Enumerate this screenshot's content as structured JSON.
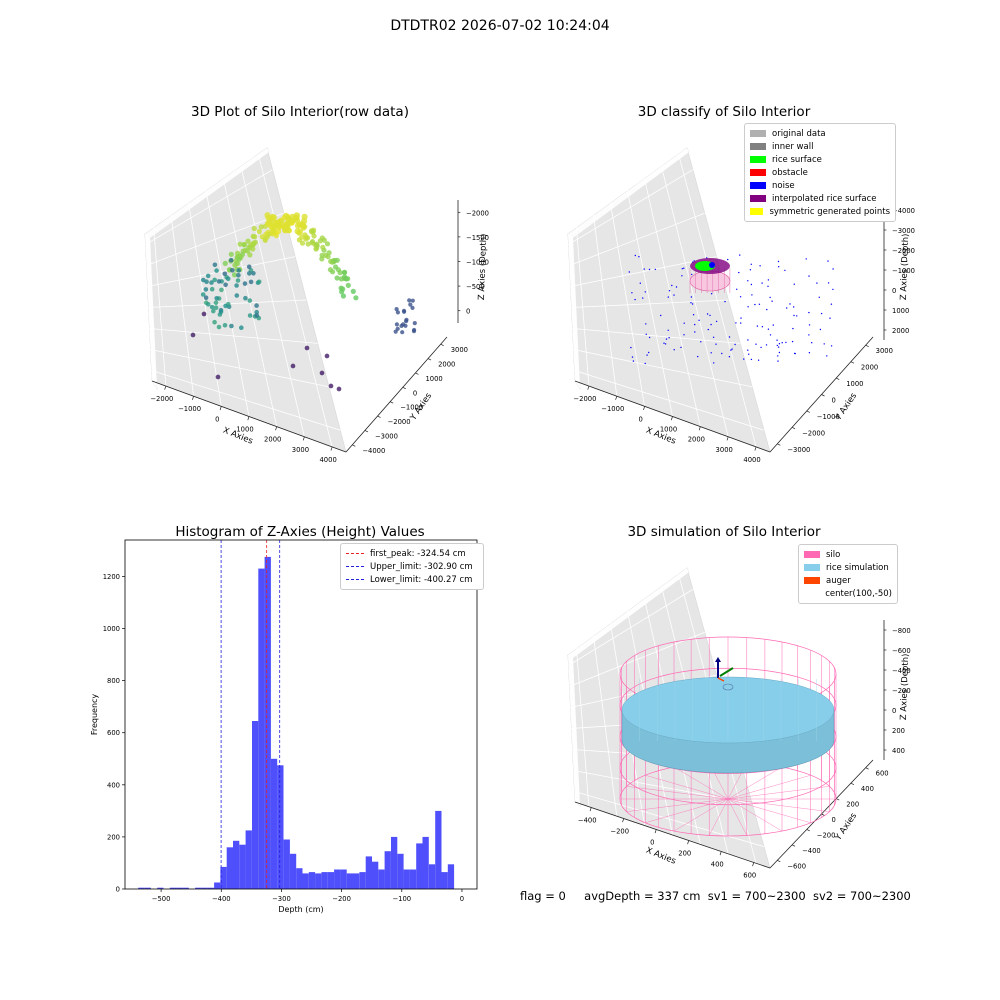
{
  "suptitle": "DTDTR02 2026-07-02 10:24:04",
  "status": {
    "flag": "flag = 0",
    "avg_depth": "avgDepth = 337 cm",
    "sv1": "sv1 = 700~2300",
    "sv2": "sv2 = 700~2300"
  },
  "colors": {
    "hist_bar": "#4f4ffb",
    "first_peak": "#e82020",
    "limit": "#2222dd",
    "silo": "#ff69b4",
    "rice": "#87ceeb",
    "auger": "#ff4500"
  },
  "chart_data": [
    {
      "type": "scatter",
      "title": "3D Plot of Silo Interior(row data)",
      "xlabel": "X Axies",
      "ylabel": "Y Axies",
      "zlabel": "Z Axies (Depth)",
      "x_ticks": [
        "−2000",
        "−1000",
        "0",
        "1000",
        "2000",
        "3000",
        "4000"
      ],
      "y_ticks": [
        "−4000",
        "−3000",
        "−2000",
        "−1000",
        "0",
        "1000",
        "2000",
        "3000"
      ],
      "z_ticks": [
        "0",
        "−500",
        "−1000",
        "−1500",
        "−2000"
      ],
      "colormap": "viridis"
    },
    {
      "type": "scatter",
      "title": "3D classify of Silo Interior",
      "xlabel": "X Axies",
      "ylabel": "Y Axies",
      "zlabel": "Z Axies (Depth)",
      "x_ticks": [
        "−2000",
        "−1000",
        "0",
        "1000",
        "2000",
        "3000",
        "4000"
      ],
      "y_ticks": [
        "−3000",
        "−2000",
        "−1000",
        "0",
        "1000",
        "2000",
        "3000"
      ],
      "z_ticks": [
        "2000",
        "1000",
        "0",
        "−1000",
        "−2000",
        "−3000",
        "−4000"
      ],
      "legend": [
        {
          "label": "original data",
          "color": "#b0b0b0"
        },
        {
          "label": "inner wall",
          "color": "#808080"
        },
        {
          "label": "rice surface",
          "color": "#00ff00"
        },
        {
          "label": "obstacle",
          "color": "#ff0000"
        },
        {
          "label": "noise",
          "color": "#0000ff"
        },
        {
          "label": "interpolated rice surface",
          "color": "#800080"
        },
        {
          "label": "symmetric generated points",
          "color": "#ffff00"
        }
      ]
    },
    {
      "type": "bar",
      "title": "Histogram of Z-Axies (Height) Values",
      "xlabel": "Depth (cm)",
      "ylabel": "Frequency",
      "xlim": [
        -560,
        25
      ],
      "ylim": [
        0,
        1340
      ],
      "x_ticks": [
        -500,
        -400,
        -300,
        -200,
        -100,
        0
      ],
      "x_tick_labels": [
        "−500",
        "−400",
        "−300",
        "−200",
        "−100",
        "0"
      ],
      "y_ticks": [
        0,
        200,
        400,
        600,
        800,
        1000,
        1200
      ],
      "bin_width": 10.5,
      "bin_starts": [
        -538,
        -527.5,
        -517,
        -506.5,
        -496,
        -485.5,
        -475,
        -464.5,
        -454,
        -443.5,
        -433,
        -422.5,
        -412,
        -401.5,
        -391,
        -380.5,
        -370,
        -359.5,
        -349,
        -338.5,
        -328,
        -317.5,
        -307,
        -296.5,
        -286,
        -275.5,
        -265,
        -254.5,
        -244,
        -233.5,
        -223,
        -212.5,
        -202,
        -191.5,
        -181,
        -170.5,
        -160,
        -149.5,
        -139,
        -128.5,
        -118,
        -107.5,
        -97,
        -86.5,
        -76,
        -65.5,
        -55,
        -44.5,
        -34,
        -23.5,
        -13,
        -2.5
      ],
      "values": [
        5,
        5,
        0,
        5,
        0,
        5,
        5,
        5,
        0,
        5,
        5,
        5,
        25,
        85,
        160,
        185,
        170,
        225,
        645,
        1230,
        1275,
        500,
        475,
        190,
        135,
        80,
        60,
        65,
        60,
        65,
        65,
        75,
        75,
        60,
        60,
        65,
        125,
        105,
        75,
        145,
        200,
        135,
        75,
        75,
        175,
        200,
        95,
        300,
        65,
        95,
        0,
        0
      ],
      "lines": [
        {
          "label": "first_peak: -324.54 cm",
          "x": -324.54,
          "color": "#e82020"
        },
        {
          "label": "Upper_limit: -302.90 cm",
          "x": -302.9,
          "color": "#2222dd"
        },
        {
          "label": "Lower_limit: -400.27 cm",
          "x": -400.27,
          "color": "#2222dd"
        }
      ]
    },
    {
      "type": "area",
      "title": "3D simulation of Silo Interior",
      "xlabel": "X Axies",
      "ylabel": "Y Axies",
      "zlabel": "Z Axies (Depth)",
      "x_ticks": [
        "−400",
        "−200",
        "0",
        "200",
        "400",
        "600"
      ],
      "y_ticks": [
        "−600",
        "−400",
        "−200",
        "0",
        "200",
        "400",
        "600"
      ],
      "z_ticks": [
        "400",
        "200",
        "0",
        "−200",
        "−400",
        "−600",
        "−800"
      ],
      "legend": [
        {
          "label": "silo",
          "color": "#ff69b4"
        },
        {
          "label": "rice simulation",
          "color": "#87ceeb"
        },
        {
          "label": "auger",
          "color": "#ff4500"
        },
        {
          "label": "center(100,-50)",
          "color": ""
        }
      ]
    }
  ]
}
